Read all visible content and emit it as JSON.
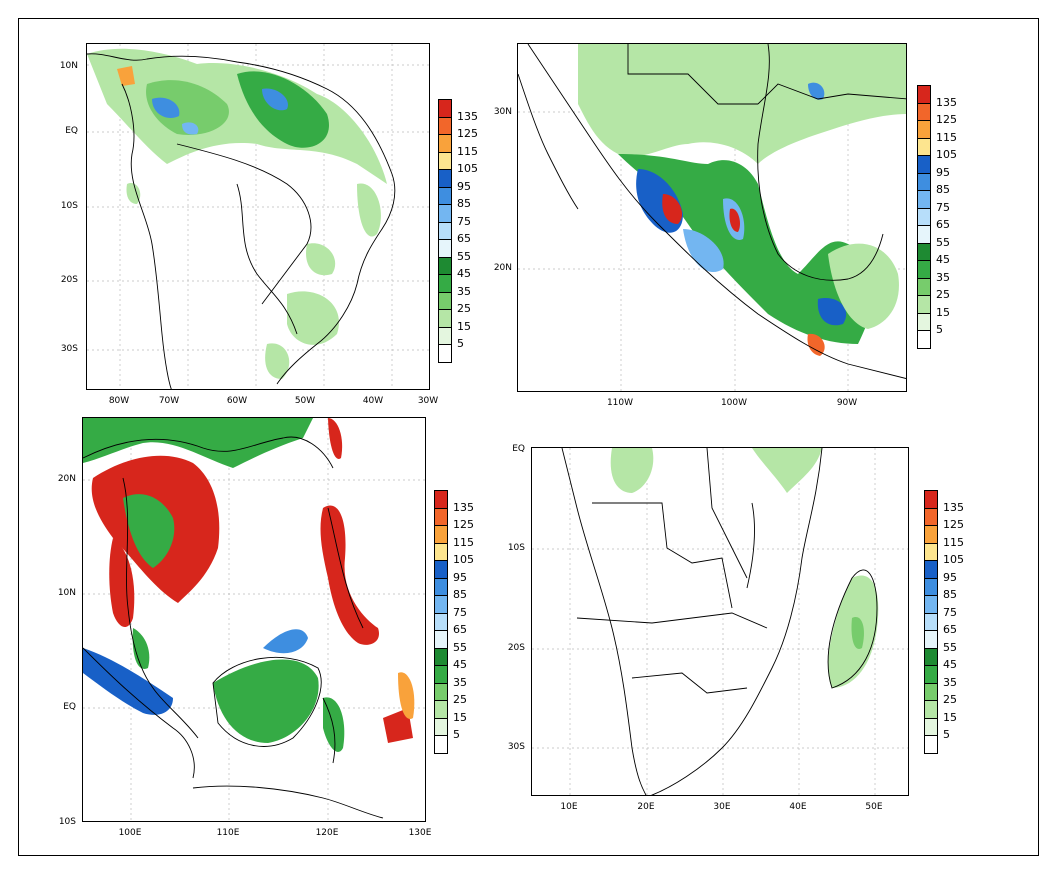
{
  "legend": {
    "levels": [
      "135",
      "125",
      "115",
      "105",
      "95",
      "85",
      "75",
      "65",
      "55",
      "45",
      "35",
      "25",
      "15",
      "5"
    ],
    "colors": [
      "#d7261c",
      "#f2662a",
      "#f9a23b",
      "#fde58f",
      "#1860c7",
      "#3e8ee0",
      "#73b6f1",
      "#b7defa",
      "#e6f5fb",
      "#1e8a32",
      "#35ab45",
      "#77cc6c",
      "#b5e6a6",
      "#e4f6df",
      "#ffffff"
    ]
  },
  "maps": [
    {
      "id": "south-america",
      "xticks": [
        "80W",
        "70W",
        "60W",
        "50W",
        "40W",
        "30W"
      ],
      "yticks": [
        "10N",
        "EQ",
        "10S",
        "20S",
        "30S"
      ]
    },
    {
      "id": "mexico",
      "xticks": [
        "110W",
        "100W",
        "90W"
      ],
      "yticks": [
        "30N",
        "20N"
      ]
    },
    {
      "id": "southeast-asia",
      "xticks": [
        "100E",
        "110E",
        "120E",
        "130E"
      ],
      "yticks": [
        "20N",
        "10N",
        "EQ",
        "10S"
      ]
    },
    {
      "id": "southern-africa",
      "xticks": [
        "10E",
        "20E",
        "30E",
        "40E",
        "50E"
      ],
      "yticks": [
        "EQ",
        "10S",
        "20S",
        "30S"
      ]
    }
  ]
}
